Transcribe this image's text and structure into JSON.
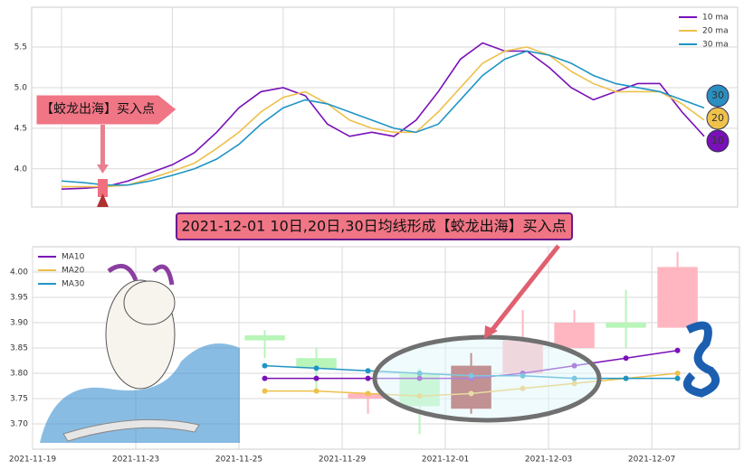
{
  "chart_data": [
    {
      "type": "line",
      "categories": [
        null,
        null,
        null,
        null,
        null,
        null,
        null,
        null,
        null,
        null,
        null,
        null,
        null,
        null,
        null,
        null,
        null,
        null,
        null,
        null,
        null,
        null,
        null,
        null,
        null,
        null,
        null,
        null,
        null,
        null
      ],
      "series": [
        {
          "name": "10 ma",
          "color": "#7a10b8",
          "values": [
            3.75,
            3.76,
            3.78,
            3.85,
            3.95,
            4.05,
            4.2,
            4.45,
            4.75,
            4.95,
            5.0,
            4.9,
            4.55,
            4.4,
            4.45,
            4.4,
            4.6,
            4.95,
            5.35,
            5.55,
            5.45,
            5.45,
            5.25,
            5.0,
            4.85,
            4.95,
            5.05,
            5.05,
            4.7,
            4.4
          ]
        },
        {
          "name": "20 ma",
          "color": "#eec04a",
          "values": [
            3.78,
            3.78,
            3.78,
            3.8,
            3.88,
            3.97,
            4.07,
            4.25,
            4.45,
            4.7,
            4.88,
            4.95,
            4.8,
            4.6,
            4.5,
            4.45,
            4.45,
            4.7,
            5.0,
            5.3,
            5.45,
            5.5,
            5.4,
            5.2,
            5.05,
            4.95,
            4.95,
            4.95,
            4.8,
            4.6
          ]
        },
        {
          "name": "30 ma",
          "color": "#1f95c4",
          "values": [
            3.85,
            3.83,
            3.8,
            3.8,
            3.85,
            3.92,
            4.0,
            4.12,
            4.3,
            4.55,
            4.75,
            4.85,
            4.8,
            4.7,
            4.6,
            4.5,
            4.45,
            4.55,
            4.85,
            5.15,
            5.35,
            5.45,
            5.4,
            5.3,
            5.15,
            5.05,
            5.0,
            4.95,
            4.85,
            4.75
          ]
        }
      ],
      "ylim": [
        3.53,
        5.99
      ],
      "yticks": [
        {
          "value": 4,
          "label": "4.0"
        },
        {
          "value": 4.5,
          "label": "4.5"
        },
        {
          "value": 5,
          "label": "5.0"
        },
        {
          "value": 5.5,
          "label": "5.5"
        }
      ],
      "grid": true,
      "legend": "upper right",
      "annotations": [
        "【蛟龙出海】买入点",
        "30",
        "20",
        "10"
      ]
    },
    {
      "type": "candlestick",
      "x": [
        4.5,
        5.5,
        6.5,
        7.5,
        8.5,
        9.5,
        10.5,
        11.5,
        12.5
      ],
      "open": [
        3.875,
        3.83,
        3.75,
        3.8,
        3.73,
        3.8,
        3.85,
        3.9,
        3.89
      ],
      "high": [
        3.885,
        3.85,
        3.76,
        3.81,
        3.84,
        3.925,
        3.925,
        3.965,
        4.04
      ],
      "low": [
        3.83,
        3.76,
        3.72,
        3.68,
        3.72,
        3.8,
        3.85,
        3.85,
        3.89
      ],
      "close": [
        3.865,
        3.81,
        3.76,
        3.735,
        3.815,
        3.865,
        3.9,
        3.89,
        4.01
      ],
      "up_color": "#ffb6c1",
      "down_color": "#b8f5b8",
      "highlight": 4,
      "highlight_color": "#a52a2a",
      "series": [
        {
          "name": "MA10",
          "color": "#7a10b8",
          "values": [
            3.79,
            3.79,
            3.79,
            3.79,
            3.79,
            3.8,
            3.815,
            3.83,
            3.845
          ]
        },
        {
          "name": "MA20",
          "color": "#eec04a",
          "values": [
            3.765,
            3.765,
            3.76,
            3.755,
            3.76,
            3.77,
            3.78,
            3.79,
            3.8
          ]
        },
        {
          "name": "MA30",
          "color": "#1f95c4",
          "values": [
            3.815,
            3.81,
            3.805,
            3.8,
            3.795,
            3.795,
            3.79,
            3.79,
            3.79
          ]
        }
      ],
      "xlim": [
        0,
        13.7
      ],
      "xticks": [
        {
          "value": 0,
          "label": "2021-11-19"
        },
        {
          "value": 2,
          "label": "2021-11-23"
        },
        {
          "value": 4,
          "label": "2021-11-25"
        },
        {
          "value": 6,
          "label": "2021-11-29"
        },
        {
          "value": 8,
          "label": "2021-12-01"
        },
        {
          "value": 10,
          "label": "2021-12-03"
        },
        {
          "value": 12,
          "label": "2021-12-07"
        }
      ],
      "ylim": [
        3.65,
        4.05
      ],
      "yticks": [
        {
          "value": 3.7,
          "label": "3.70"
        },
        {
          "value": 3.75,
          "label": "3.75"
        },
        {
          "value": 3.8,
          "label": "3.80"
        },
        {
          "value": 3.85,
          "label": "3.85"
        },
        {
          "value": 3.9,
          "label": "3.90"
        },
        {
          "value": 3.95,
          "label": "3.95"
        },
        {
          "value": 4,
          "label": "4.00"
        }
      ],
      "grid": true,
      "legend": "upper left",
      "annotations": [
        "2021-12-01 10日,20日,30日均线形成【蛟龙出海】买入点"
      ]
    }
  ]
}
